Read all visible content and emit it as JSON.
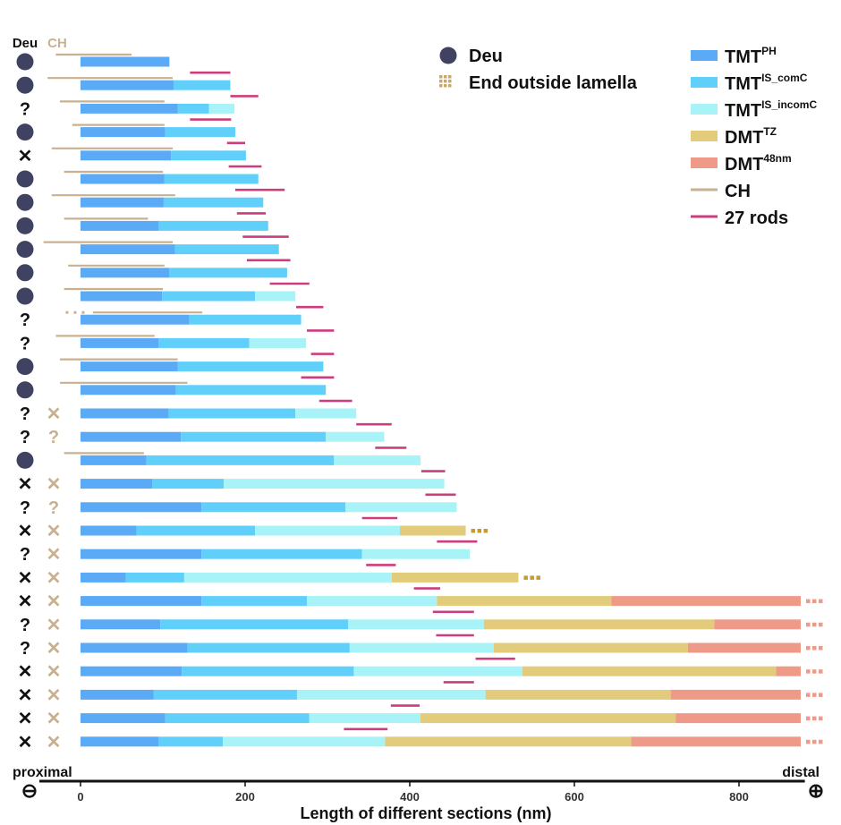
{
  "chart_data": {
    "type": "bar",
    "orientation": "horizontal-stacked",
    "xlabel": "Length of different sections (nm)",
    "xlim": [
      -60,
      880
    ],
    "xticks": [
      0,
      200,
      400,
      600,
      800
    ],
    "axis_end_labels": {
      "left": "proximal",
      "right": "distal",
      "left_symbol": "⊖",
      "right_symbol": "⊕"
    },
    "column_headers": {
      "deu": "Deu",
      "ch": "CH"
    },
    "legend": [
      {
        "key": "deu",
        "label": "Deu",
        "color": "#3f4361",
        "marker": "circle"
      },
      {
        "key": "end",
        "label": "End outside lamella",
        "color": "#c9a86a",
        "marker": "dots"
      },
      {
        "key": "ph",
        "label": "TMT",
        "sup": "PH",
        "color": "#5aaaf5",
        "marker": "rect"
      },
      {
        "key": "comC",
        "label": "TMT",
        "sup": "IS_comC",
        "color": "#60d0fb",
        "marker": "rect"
      },
      {
        "key": "incomC",
        "label": "TMT",
        "sup": "IS_incomC",
        "color": "#a8f3f8",
        "marker": "rect"
      },
      {
        "key": "tz",
        "label": "DMT",
        "sup": "TZ",
        "color": "#e2cc7c",
        "marker": "rect"
      },
      {
        "key": "d48",
        "label": "DMT",
        "sup": "48nm",
        "color": "#ef9a88",
        "marker": "rect"
      },
      {
        "key": "ch",
        "label": "CH",
        "color": "#c9b190",
        "marker": "line"
      },
      {
        "key": "rods",
        "label": "27 rods",
        "color": "#cc3d7e",
        "marker": "line"
      }
    ],
    "symbol_glyphs": {
      "D": "●",
      "Q": "?",
      "X": "✕"
    },
    "rows": [
      {
        "deu": "D",
        "ch": "",
        "segments": [
          108
        ],
        "ch_line": [
          -30,
          62
        ]
      },
      {
        "deu": "D",
        "ch": "",
        "segments": [
          113,
          182
        ],
        "ch_line": [
          -40,
          112
        ],
        "rod": [
          133,
          182
        ]
      },
      {
        "deu": "Q",
        "ch": "",
        "segments": [
          118,
          156,
          187
        ],
        "ch_line": [
          -25,
          102
        ],
        "rod": [
          182,
          216
        ]
      },
      {
        "deu": "D",
        "ch": "",
        "segments": [
          103,
          188
        ],
        "ch_line": [
          -10,
          102
        ],
        "rod": [
          133,
          183
        ]
      },
      {
        "deu": "X",
        "ch": "",
        "segments": [
          110,
          201
        ],
        "ch_line": [
          -35,
          112
        ],
        "rod": [
          178,
          200
        ]
      },
      {
        "deu": "D",
        "ch": "",
        "segments": [
          102,
          216
        ],
        "ch_line": [
          -20,
          100
        ],
        "rod": [
          180,
          220
        ]
      },
      {
        "deu": "D",
        "ch": "",
        "segments": [
          101,
          222
        ],
        "ch_line": [
          -35,
          115
        ],
        "rod": [
          188,
          248
        ]
      },
      {
        "deu": "D",
        "ch": "",
        "segments": [
          95,
          228
        ],
        "ch_line": [
          -20,
          82
        ],
        "rod": [
          190,
          225
        ]
      },
      {
        "deu": "D",
        "ch": "",
        "segments": [
          115,
          241
        ],
        "ch_line": [
          -45,
          112
        ],
        "rod": [
          197,
          253
        ]
      },
      {
        "deu": "D",
        "ch": "",
        "segments": [
          108,
          251
        ],
        "ch_line": [
          -15,
          102
        ],
        "rod": [
          202,
          255
        ]
      },
      {
        "deu": "D",
        "ch": "",
        "segments": [
          99,
          212,
          261
        ],
        "ch_line": [
          -20,
          100
        ],
        "rod": [
          230,
          278
        ]
      },
      {
        "deu": "Q",
        "ch": "",
        "segments": [
          132,
          268
        ],
        "ch_line": [
          15,
          148
        ],
        "ch_dots": [
          -18,
          12
        ],
        "rod": [
          262,
          295
        ]
      },
      {
        "deu": "Q",
        "ch": "",
        "segments": [
          95,
          205,
          274
        ],
        "ch_line": [
          -30,
          90
        ],
        "rod": [
          275,
          308
        ]
      },
      {
        "deu": "D",
        "ch": "",
        "segments": [
          118,
          295
        ],
        "ch_line": [
          -25,
          118
        ],
        "rod": [
          280,
          308
        ]
      },
      {
        "deu": "D",
        "ch": "",
        "segments": [
          116,
          298
        ],
        "ch_line": [
          -25,
          130
        ],
        "rod": [
          268,
          308
        ]
      },
      {
        "deu": "Q",
        "ch": "X",
        "segments": [
          107,
          261,
          335
        ],
        "rod": [
          290,
          330
        ]
      },
      {
        "deu": "Q",
        "ch": "Q",
        "segments": [
          122,
          298,
          369
        ],
        "rod": [
          335,
          378
        ]
      },
      {
        "deu": "D",
        "ch": "",
        "segments": [
          80,
          308,
          413
        ],
        "ch_line": [
          -20,
          77
        ],
        "rod": [
          358,
          396
        ]
      },
      {
        "deu": "X",
        "ch": "X",
        "segments": [
          87,
          174,
          442
        ],
        "rod": [
          414,
          443
        ]
      },
      {
        "deu": "Q",
        "ch": "Q",
        "segments": [
          147,
          322,
          457
        ],
        "rod": [
          419,
          456
        ]
      },
      {
        "deu": "X",
        "ch": "X",
        "segments": [
          68,
          212,
          388,
          468
        ],
        "end_dots": true,
        "rod": [
          342,
          385
        ]
      },
      {
        "deu": "Q",
        "ch": "X",
        "segments": [
          147,
          342,
          473
        ],
        "rod": [
          433,
          482
        ]
      },
      {
        "deu": "X",
        "ch": "X",
        "segments": [
          55,
          126,
          378,
          532
        ],
        "end_dots": true,
        "rod": [
          347,
          383
        ]
      },
      {
        "deu": "X",
        "ch": "X",
        "segments": [
          147,
          275,
          433,
          645,
          875
        ],
        "end_dots": true,
        "rod": [
          405,
          437
        ]
      },
      {
        "deu": "Q",
        "ch": "X",
        "segments": [
          97,
          325,
          490,
          770,
          875
        ],
        "end_dots": true,
        "rod": [
          428,
          478
        ]
      },
      {
        "deu": "Q",
        "ch": "X",
        "segments": [
          130,
          327,
          502,
          738,
          875
        ],
        "end_dots": true,
        "rod": [
          432,
          478
        ]
      },
      {
        "deu": "X",
        "ch": "X",
        "segments": [
          123,
          332,
          537,
          845,
          875
        ],
        "end_dots": true,
        "rod": [
          480,
          528
        ]
      },
      {
        "deu": "X",
        "ch": "X",
        "segments": [
          89,
          263,
          492,
          717,
          875
        ],
        "end_dots": true,
        "rod": [
          441,
          478
        ]
      },
      {
        "deu": "X",
        "ch": "X",
        "segments": [
          103,
          278,
          413,
          723,
          875
        ],
        "end_dots": true,
        "rod": [
          377,
          412
        ]
      },
      {
        "deu": "X",
        "ch": "X",
        "segments": [
          95,
          173,
          370,
          669,
          875
        ],
        "end_dots": true,
        "rod": [
          320,
          373
        ]
      }
    ]
  }
}
